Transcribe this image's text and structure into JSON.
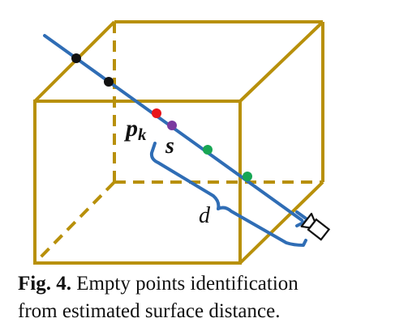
{
  "colors": {
    "cube": "#B8900A",
    "ray": "#2F6DB5",
    "bracket": "#2F6DB5",
    "point_black": "#111111",
    "point_red": "#E8141B",
    "point_purple": "#7A3AA0",
    "point_green": "#18A654"
  },
  "labels": {
    "pk_base": "p",
    "pk_sub": "k",
    "s": "s",
    "d": "d"
  },
  "icons": {
    "camera": "camera-icon"
  },
  "caption": {
    "fig_label": "Fig. 4.",
    "line1": "Empty points identification",
    "line2": "from estimated surface distance."
  }
}
